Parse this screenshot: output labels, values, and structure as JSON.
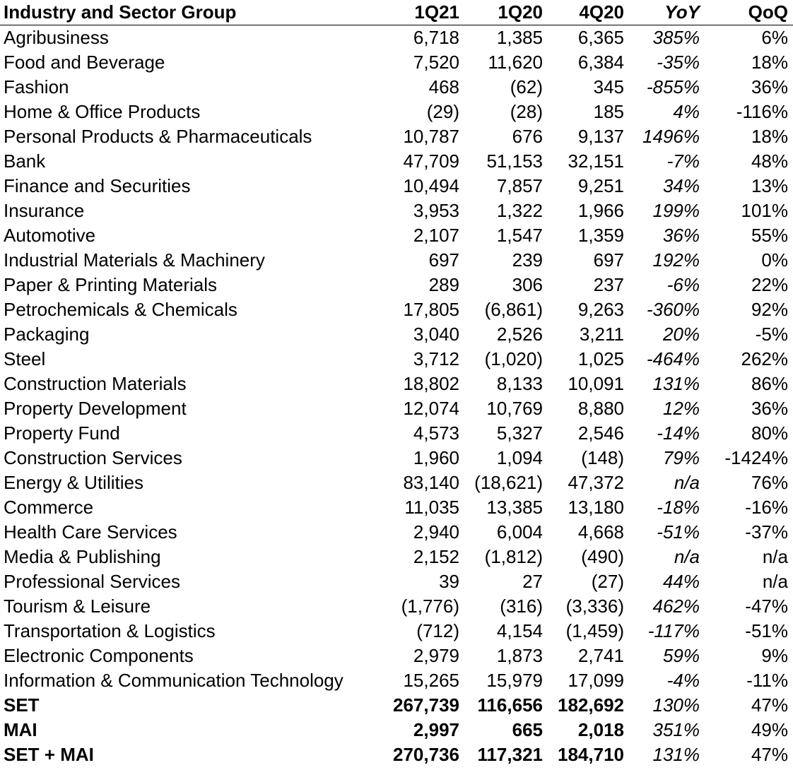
{
  "table": {
    "header": [
      "Industry and Sector Group",
      "1Q21",
      "1Q20",
      "4Q20",
      "YoY",
      "QoQ"
    ],
    "rows": [
      [
        "Agribusiness",
        "6,718",
        "1,385",
        "6,365",
        "385%",
        "6%"
      ],
      [
        "Food and Beverage",
        "7,520",
        "11,620",
        "6,384",
        "-35%",
        "18%"
      ],
      [
        "Fashion",
        "468",
        "(62)",
        "345",
        "-855%",
        "36%"
      ],
      [
        "Home & Office Products",
        "(29)",
        "(28)",
        "185",
        "4%",
        "-116%"
      ],
      [
        "Personal Products & Pharmaceuticals",
        "10,787",
        "676",
        "9,137",
        "1496%",
        "18%"
      ],
      [
        "Bank",
        "47,709",
        "51,153",
        "32,151",
        "-7%",
        "48%"
      ],
      [
        "Finance and Securities",
        "10,494",
        "7,857",
        "9,251",
        "34%",
        "13%"
      ],
      [
        "Insurance",
        "3,953",
        "1,322",
        "1,966",
        "199%",
        "101%"
      ],
      [
        "Automotive",
        "2,107",
        "1,547",
        "1,359",
        "36%",
        "55%"
      ],
      [
        "Industrial Materials & Machinery",
        "697",
        "239",
        "697",
        "192%",
        "0%"
      ],
      [
        "Paper & Printing Materials",
        "289",
        "306",
        "237",
        "-6%",
        "22%"
      ],
      [
        "Petrochemicals & Chemicals",
        "17,805",
        "(6,861)",
        "9,263",
        "-360%",
        "92%"
      ],
      [
        "Packaging",
        "3,040",
        "2,526",
        "3,211",
        "20%",
        "-5%"
      ],
      [
        "Steel",
        "3,712",
        "(1,020)",
        "1,025",
        "-464%",
        "262%"
      ],
      [
        "Construction Materials",
        "18,802",
        "8,133",
        "10,091",
        "131%",
        "86%"
      ],
      [
        "Property Development",
        "12,074",
        "10,769",
        "8,880",
        "12%",
        "36%"
      ],
      [
        "Property Fund",
        "4,573",
        "5,327",
        "2,546",
        "-14%",
        "80%"
      ],
      [
        "Construction Services",
        "1,960",
        "1,094",
        "(148)",
        "79%",
        "-1424%"
      ],
      [
        "Energy & Utilities",
        "83,140",
        "(18,621)",
        "47,372",
        "n/a",
        "76%"
      ],
      [
        "Commerce",
        "11,035",
        "13,385",
        "13,180",
        "-18%",
        "-16%"
      ],
      [
        "Health Care Services",
        "2,940",
        "6,004",
        "4,668",
        "-51%",
        "-37%"
      ],
      [
        "Media & Publishing",
        "2,152",
        "(1,812)",
        "(490)",
        "n/a",
        "n/a"
      ],
      [
        "Professional Services",
        "39",
        "27",
        "(27)",
        "44%",
        "n/a"
      ],
      [
        "Tourism & Leisure",
        "(1,776)",
        "(316)",
        "(3,336)",
        "462%",
        "-47%"
      ],
      [
        "Transportation & Logistics",
        "(712)",
        "4,154",
        "(1,459)",
        "-117%",
        "-51%"
      ],
      [
        "Electronic Components",
        "2,979",
        "1,873",
        "2,741",
        "59%",
        "9%"
      ],
      [
        "Information & Communication Technology",
        "15,265",
        "15,979",
        "17,099",
        "-4%",
        "-11%"
      ]
    ],
    "totals": [
      [
        "SET",
        "267,739",
        "116,656",
        "182,692",
        "130%",
        "47%"
      ],
      [
        "MAI",
        "2,997",
        "665",
        "2,018",
        "351%",
        "49%"
      ],
      [
        "SET + MAI",
        "270,736",
        "117,321",
        "184,710",
        "131%",
        "47%"
      ]
    ]
  }
}
